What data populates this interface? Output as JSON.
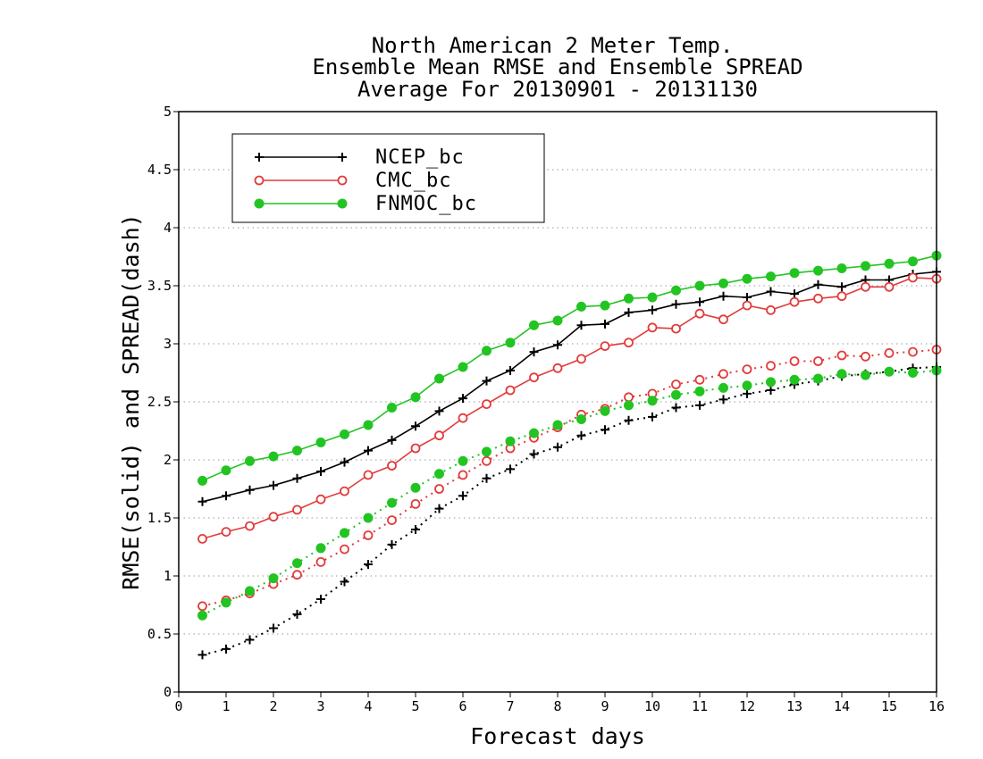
{
  "chart_data": {
    "type": "line",
    "title_lines": [
      "North American 2 Meter Temp.",
      "Ensemble Mean RMSE and Ensemble SPREAD",
      "Average For 20130901 - 20131130"
    ],
    "xlabel": "Forecast days",
    "ylabel": "RMSE(solid) and SPREAD(dash)",
    "xlim": [
      0,
      16
    ],
    "ylim": [
      0,
      5
    ],
    "x_ticks": [
      "0",
      "1",
      "2",
      "3",
      "4",
      "5",
      "6",
      "7",
      "8",
      "9",
      "10",
      "11",
      "12",
      "13",
      "14",
      "15",
      "16"
    ],
    "y_ticks": [
      "0",
      "0.5",
      "1",
      "1.5",
      "2",
      "2.5",
      "3",
      "3.5",
      "4",
      "4.5",
      "5"
    ],
    "grid": "horizontal dotted",
    "legend_position": "top-left",
    "x": [
      0.5,
      1,
      1.5,
      2,
      2.5,
      3,
      3.5,
      4,
      4.5,
      5,
      5.5,
      6,
      6.5,
      7,
      7.5,
      8,
      8.5,
      9,
      9.5,
      10,
      10.5,
      11,
      11.5,
      12,
      12.5,
      13,
      13.5,
      14,
      14.5,
      15,
      15.5,
      16
    ],
    "series": [
      {
        "name": "NCEP_bc",
        "color": "#000000",
        "marker": "plus",
        "rmse": [
          1.64,
          1.69,
          1.74,
          1.78,
          1.84,
          1.9,
          1.98,
          2.08,
          2.17,
          2.29,
          2.42,
          2.53,
          2.68,
          2.77,
          2.93,
          2.99,
          3.16,
          3.17,
          3.27,
          3.29,
          3.34,
          3.36,
          3.41,
          3.4,
          3.45,
          3.43,
          3.51,
          3.49,
          3.55,
          3.55,
          3.6,
          3.62
        ],
        "spread": [
          0.32,
          0.37,
          0.45,
          0.55,
          0.67,
          0.8,
          0.95,
          1.1,
          1.27,
          1.4,
          1.58,
          1.69,
          1.84,
          1.92,
          2.05,
          2.11,
          2.21,
          2.26,
          2.34,
          2.37,
          2.45,
          2.47,
          2.52,
          2.57,
          2.6,
          2.65,
          2.68,
          2.72,
          2.74,
          2.76,
          2.79,
          2.8
        ]
      },
      {
        "name": "CMC_bc",
        "color": "#e23b3b",
        "marker": "open-circle",
        "rmse": [
          1.32,
          1.38,
          1.43,
          1.51,
          1.57,
          1.66,
          1.73,
          1.87,
          1.95,
          2.1,
          2.21,
          2.36,
          2.48,
          2.6,
          2.71,
          2.79,
          2.87,
          2.98,
          3.01,
          3.14,
          3.13,
          3.26,
          3.21,
          3.33,
          3.29,
          3.36,
          3.39,
          3.41,
          3.49,
          3.49,
          3.57,
          3.56
        ],
        "spread": [
          0.74,
          0.79,
          0.85,
          0.93,
          1.01,
          1.12,
          1.23,
          1.35,
          1.48,
          1.62,
          1.75,
          1.87,
          1.99,
          2.1,
          2.19,
          2.28,
          2.39,
          2.44,
          2.54,
          2.57,
          2.65,
          2.69,
          2.74,
          2.78,
          2.81,
          2.85,
          2.85,
          2.9,
          2.89,
          2.92,
          2.93,
          2.95
        ]
      },
      {
        "name": "FNMOC_bc",
        "color": "#22c422",
        "marker": "filled-circle",
        "rmse": [
          1.82,
          1.91,
          1.99,
          2.03,
          2.08,
          2.15,
          2.22,
          2.3,
          2.45,
          2.54,
          2.7,
          2.8,
          2.94,
          3.01,
          3.16,
          3.2,
          3.32,
          3.33,
          3.39,
          3.4,
          3.46,
          3.5,
          3.52,
          3.56,
          3.58,
          3.61,
          3.63,
          3.65,
          3.67,
          3.69,
          3.71,
          3.76
        ],
        "spread": [
          0.66,
          0.77,
          0.87,
          0.98,
          1.11,
          1.24,
          1.37,
          1.5,
          1.63,
          1.76,
          1.88,
          1.99,
          2.07,
          2.16,
          2.23,
          2.3,
          2.35,
          2.42,
          2.47,
          2.51,
          2.56,
          2.59,
          2.62,
          2.64,
          2.67,
          2.69,
          2.7,
          2.74,
          2.73,
          2.76,
          2.75,
          2.77
        ]
      }
    ]
  }
}
